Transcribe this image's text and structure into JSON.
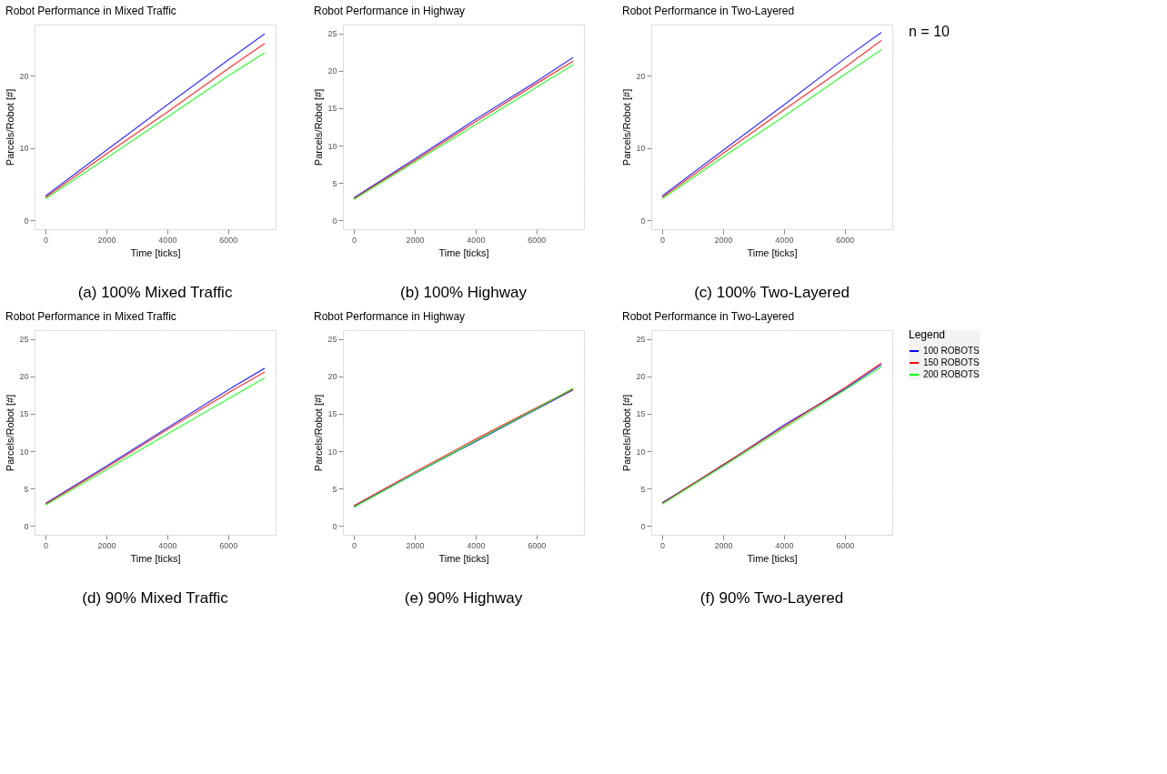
{
  "chart_data": [
    {
      "type": "line",
      "title": "Robot Performance in Mixed Traffic",
      "xlabel": "Time [ticks]",
      "ylabel": "Parcels/Robot [#]",
      "annotations": [
        "(a) 100% Mixed Traffic"
      ],
      "x": [
        0,
        2000,
        4000,
        6000,
        7200
      ],
      "xlim": [
        -360,
        7560
      ],
      "xticks": [
        0,
        2000,
        4000,
        6000
      ],
      "ylim": [
        -1.2,
        27.1
      ],
      "yticks": [
        0,
        10,
        20
      ],
      "grid": true,
      "series": [
        {
          "color": "#0000ff",
          "values": [
            3.4,
            9.7,
            16.0,
            22.2,
            25.8
          ]
        },
        {
          "color": "#ff0000",
          "values": [
            3.2,
            9.2,
            15.0,
            21.0,
            24.5
          ]
        },
        {
          "color": "#00ff00",
          "values": [
            3.0,
            8.6,
            14.3,
            20.0,
            23.2
          ]
        }
      ]
    },
    {
      "type": "line",
      "title": "Robot Performance in Highway",
      "xlabel": "Time [ticks]",
      "ylabel": "Parcels/Robot [#]",
      "annotations": [
        "(b) 100% Highway"
      ],
      "x": [
        0,
        2000,
        4000,
        6000,
        7200
      ],
      "xlim": [
        -360,
        7560
      ],
      "xticks": [
        0,
        2000,
        4000,
        6000
      ],
      "ylim": [
        -1.2,
        26.2
      ],
      "yticks": [
        0,
        5,
        10,
        15,
        20,
        25
      ],
      "grid": true,
      "series": [
        {
          "color": "#0000ff",
          "values": [
            3.0,
            8.2,
            13.5,
            18.6,
            21.8
          ]
        },
        {
          "color": "#ff0000",
          "values": [
            2.9,
            8.0,
            13.2,
            18.3,
            21.3
          ]
        },
        {
          "color": "#00ff00",
          "values": [
            2.8,
            7.8,
            12.8,
            17.8,
            20.8
          ]
        }
      ]
    },
    {
      "type": "line",
      "title": "Robot Performance in Two-Layered",
      "xlabel": "Time [ticks]",
      "ylabel": "Parcels/Robot [#]",
      "annotations": [
        "(c) 100% Two-Layered",
        "n = 10"
      ],
      "x": [
        0,
        2000,
        4000,
        6000,
        7200
      ],
      "xlim": [
        -360,
        7560
      ],
      "xticks": [
        0,
        2000,
        4000,
        6000
      ],
      "ylim": [
        -1.2,
        27.1
      ],
      "yticks": [
        0,
        10,
        20
      ],
      "grid": true,
      "series": [
        {
          "color": "#0000ff",
          "values": [
            3.4,
            9.7,
            16.0,
            22.4,
            26.0
          ]
        },
        {
          "color": "#ff0000",
          "values": [
            3.2,
            9.3,
            15.3,
            21.2,
            24.9
          ]
        },
        {
          "color": "#00ff00",
          "values": [
            3.0,
            8.8,
            14.4,
            20.2,
            23.6
          ]
        }
      ]
    },
    {
      "type": "line",
      "title": "Robot Performance in Mixed Traffic",
      "xlabel": "Time [ticks]",
      "ylabel": "Parcels/Robot [#]",
      "annotations": [
        "(d) 90% Mixed Traffic"
      ],
      "x": [
        0,
        2000,
        4000,
        6000,
        7200
      ],
      "xlim": [
        -360,
        7560
      ],
      "xticks": [
        0,
        2000,
        4000,
        6000
      ],
      "ylim": [
        -1.2,
        26.2
      ],
      "yticks": [
        0,
        5,
        10,
        15,
        20,
        25
      ],
      "grid": true,
      "series": [
        {
          "color": "#0000ff",
          "values": [
            3.0,
            8.0,
            13.1,
            18.2,
            21.1
          ]
        },
        {
          "color": "#ff0000",
          "values": [
            2.9,
            7.8,
            12.9,
            17.8,
            20.6
          ]
        },
        {
          "color": "#00ff00",
          "values": [
            2.8,
            7.5,
            12.3,
            17.0,
            19.8
          ]
        }
      ]
    },
    {
      "type": "line",
      "title": "Robot Performance in Highway",
      "xlabel": "Time [ticks]",
      "ylabel": "Parcels/Robot [#]",
      "annotations": [
        "(e) 90% Highway"
      ],
      "x": [
        0,
        2000,
        4000,
        6000,
        7200
      ],
      "xlim": [
        -360,
        7560
      ],
      "xticks": [
        0,
        2000,
        4000,
        6000
      ],
      "ylim": [
        -1.2,
        26.2
      ],
      "yticks": [
        0,
        5,
        10,
        15,
        20,
        25
      ],
      "grid": true,
      "series": [
        {
          "color": "#0000ff",
          "values": [
            2.6,
            7.0,
            11.3,
            15.6,
            18.2
          ]
        },
        {
          "color": "#ff0000",
          "values": [
            2.7,
            7.2,
            11.6,
            15.8,
            18.3
          ]
        },
        {
          "color": "#00ff00",
          "values": [
            2.5,
            7.0,
            11.4,
            15.7,
            18.4
          ]
        }
      ]
    },
    {
      "type": "line",
      "title": "Robot Performance in Two-Layered",
      "xlabel": "Time [ticks]",
      "ylabel": "Parcels/Robot [#]",
      "annotations": [
        "(f) 90% Two-Layered"
      ],
      "x": [
        0,
        2000,
        4000,
        6000,
        7200
      ],
      "xlim": [
        -360,
        7560
      ],
      "xticks": [
        0,
        2000,
        4000,
        6000
      ],
      "ylim": [
        -1.2,
        26.2
      ],
      "yticks": [
        0,
        5,
        10,
        15,
        20,
        25
      ],
      "grid": true,
      "legend": "right",
      "legend_title": "Legend",
      "series": [
        {
          "name": "100 ROBOTS",
          "color": "#0000ff",
          "values": [
            3.1,
            8.1,
            13.5,
            18.3,
            21.6
          ]
        },
        {
          "name": "150 ROBOTS",
          "color": "#ff0000",
          "values": [
            3.0,
            8.2,
            13.3,
            18.5,
            21.8
          ]
        },
        {
          "name": "200 ROBOTS",
          "color": "#00ff00",
          "values": [
            2.9,
            8.0,
            13.1,
            18.2,
            21.3
          ]
        }
      ]
    }
  ]
}
